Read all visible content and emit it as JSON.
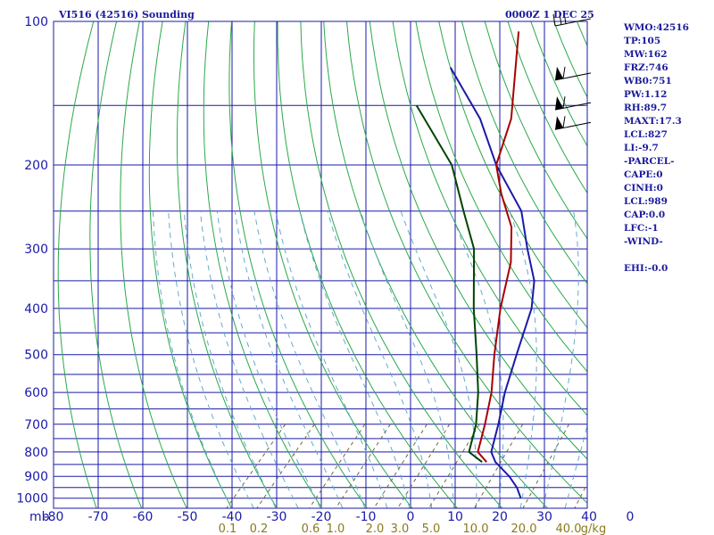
{
  "header": {
    "station_title": "VI516 (42516) Sounding",
    "datetime": "0000Z  1 DEC 25"
  },
  "stats": [
    "WMO:42516",
    "TP:105",
    "MW:162",
    "FRZ:746",
    "WB0:751",
    "PW:1.12",
    "RH:89.7",
    "MAXT:17.3",
    "LCL:827",
    "LI:-9.7",
    "-PARCEL-",
    "CAPE:0",
    "CINH:0",
    "LCL:989",
    "CAP:0.0",
    "LFC:-1",
    "-WIND-",
    "",
    "EHI:-0.0"
  ],
  "chart_data": {
    "type": "line",
    "title": "VI516 (42516) Sounding",
    "xlabel": "",
    "ylabel": "mb",
    "x_ticks": [
      "-80",
      "-70",
      "-60",
      "-50",
      "-40",
      "-30",
      "-20",
      "-10",
      "0",
      "10",
      "20",
      "30",
      "40",
      "0"
    ],
    "x_range": [
      -80,
      40
    ],
    "y_ticks": [
      "100",
      "200",
      "300",
      "400",
      "500",
      "600",
      "700",
      "800",
      "900",
      "1000"
    ],
    "y_range": [
      1000,
      100
    ],
    "y_axis_unit": "mb",
    "pressure_grid": [
      100,
      150,
      200,
      250,
      300,
      350,
      400,
      450,
      500,
      550,
      600,
      650,
      700,
      750,
      800,
      850,
      900,
      950,
      1000
    ],
    "mixing_ratio_labels": [
      "0.1",
      "0.2",
      "0.6",
      "1.0",
      "2.0",
      "3.0",
      "5.0",
      "10.0",
      "20.0",
      "40.0",
      "g/kg"
    ],
    "grid": true,
    "series": [
      {
        "name": "",
        "color": "#1a1aa8",
        "points": [
          [
            23,
            1000
          ],
          [
            20,
            950
          ],
          [
            16,
            900
          ],
          [
            10,
            840
          ],
          [
            7,
            800
          ],
          [
            3,
            700
          ],
          [
            -2,
            600
          ],
          [
            -7,
            500
          ],
          [
            -13,
            400
          ],
          [
            -18,
            350
          ],
          [
            -26,
            300
          ],
          [
            -35,
            250
          ],
          [
            -50,
            200
          ],
          [
            -63,
            160
          ],
          [
            -80,
            125
          ]
        ]
      },
      {
        "name": "",
        "color": "#a80000",
        "points": [
          [
            8,
            840
          ],
          [
            4,
            800
          ],
          [
            0,
            700
          ],
          [
            -5,
            600
          ],
          [
            -12,
            500
          ],
          [
            -20,
            400
          ],
          [
            -27,
            320
          ],
          [
            -34,
            270
          ],
          [
            -43,
            230
          ],
          [
            -50,
            200
          ],
          [
            -56,
            160
          ],
          [
            -72,
            105
          ]
        ]
      },
      {
        "name": "",
        "color": "#004400",
        "points": [
          [
            7,
            840
          ],
          [
            2,
            800
          ],
          [
            -2,
            700
          ],
          [
            -8,
            600
          ],
          [
            -16,
            500
          ],
          [
            -26,
            400
          ],
          [
            -38,
            300
          ],
          [
            -48,
            250
          ],
          [
            -60,
            200
          ],
          [
            -80,
            150
          ]
        ]
      }
    ],
    "colors": {
      "isotherm": "#1a1aa8",
      "dry_adiabat": "#2aa84a",
      "moist_adiabat": "#66aacc",
      "mixing_ratio": "#6a6a3a",
      "wind_barb": "#000000",
      "axis_label": "#1a1aa8",
      "mixing_label": "#8a7a1a"
    },
    "wind_barbs": [
      {
        "pressure": 100,
        "knots": 25
      },
      {
        "pressure": 130,
        "knots": 55
      },
      {
        "pressure": 150,
        "knots": 55
      },
      {
        "pressure": 165,
        "knots": 55
      }
    ]
  }
}
